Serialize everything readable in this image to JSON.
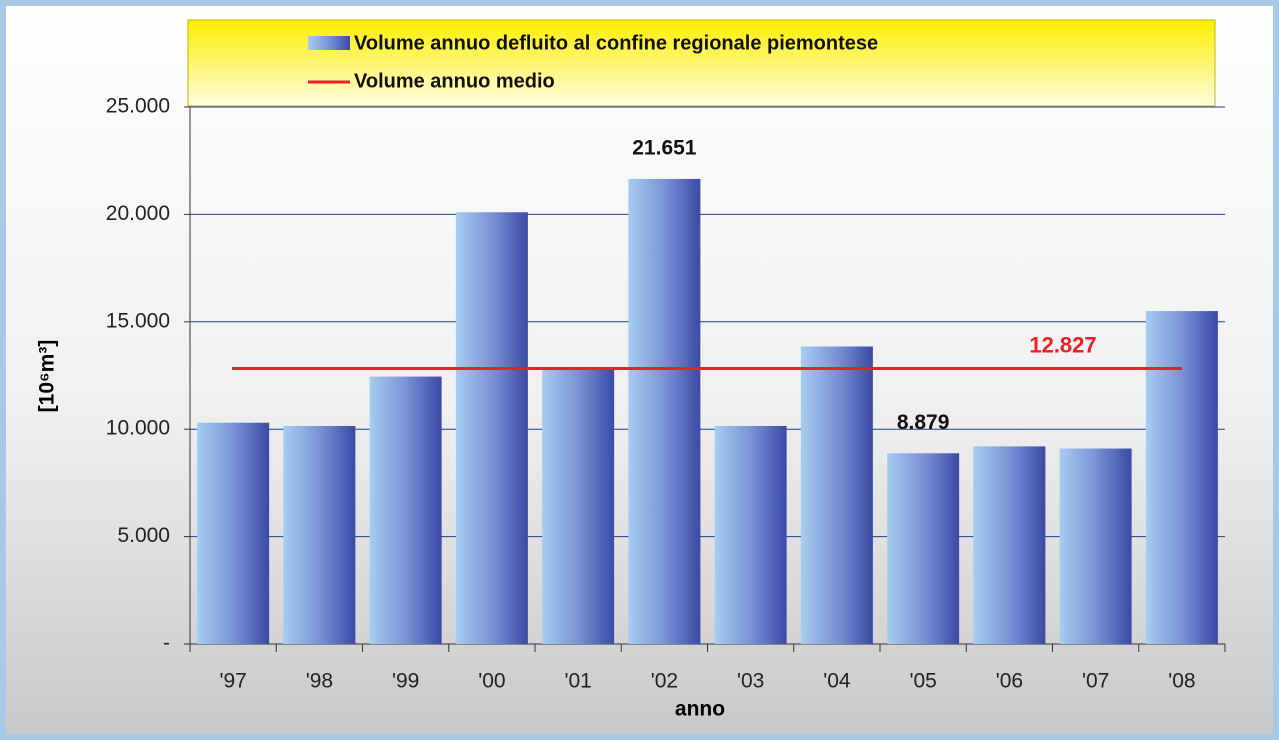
{
  "chart_data": {
    "type": "bar",
    "x_label": "anno",
    "y_label": "[10⁶m³]",
    "categories": [
      "'97",
      "'98",
      "'99",
      "'00",
      "'01",
      "'02",
      "'03",
      "'04",
      "'05",
      "'06",
      "'07",
      "'08"
    ],
    "series": [
      {
        "name": "Volume annuo defluito al confine regionale piemontese",
        "color": "#4a5cb0",
        "values": [
          10300,
          10150,
          12450,
          20100,
          12850,
          21651,
          10150,
          13850,
          8879,
          9200,
          9100,
          15500
        ],
        "value_labels": [
          null,
          null,
          null,
          null,
          null,
          "21.651",
          null,
          null,
          "8.879",
          null,
          null,
          null
        ]
      }
    ],
    "mean": {
      "name": "Volume annuo medio",
      "color": "#e8202a",
      "value": 12827,
      "value_label": "12.827"
    },
    "ylim": [
      0,
      25000
    ],
    "yticks": [
      {
        "value": 0,
        "label": "-"
      },
      {
        "value": 5000,
        "label": "5.000"
      },
      {
        "value": 10000,
        "label": "10.000"
      },
      {
        "value": 15000,
        "label": "15.000"
      },
      {
        "value": 20000,
        "label": "20.000"
      },
      {
        "value": 25000,
        "label": "25.000"
      }
    ],
    "grid": true
  }
}
